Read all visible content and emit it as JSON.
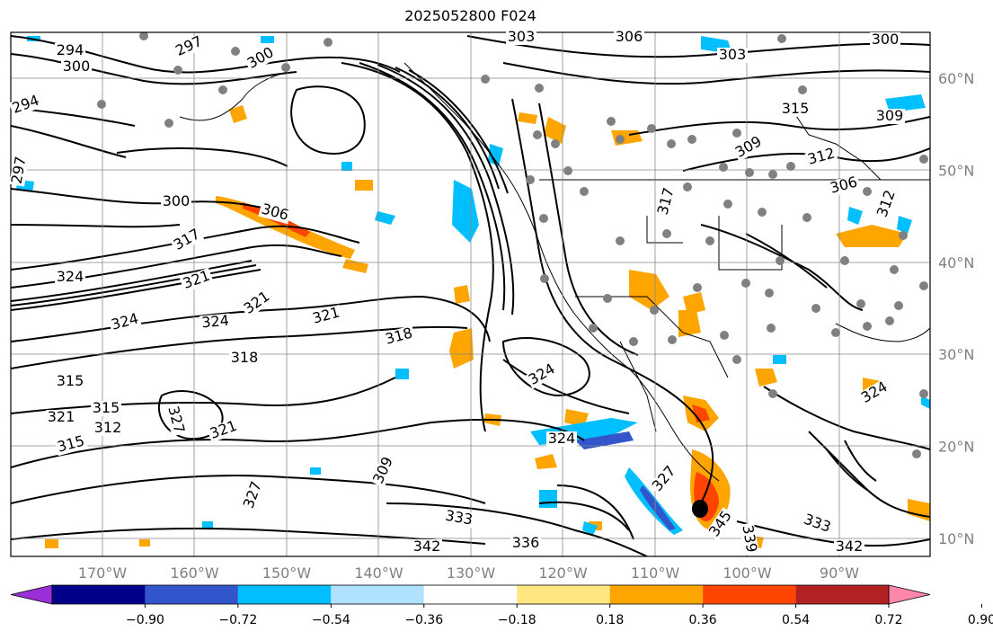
{
  "title": "2025052800 F024",
  "map": {
    "lon_labels": [
      {
        "text": "170°W",
        "lon": -170
      },
      {
        "text": "160°W",
        "lon": -160
      },
      {
        "text": "150°W",
        "lon": -150
      },
      {
        "text": "140°W",
        "lon": -140
      },
      {
        "text": "130°W",
        "lon": -130
      },
      {
        "text": "120°W",
        "lon": -120
      },
      {
        "text": "110°W",
        "lon": -110
      },
      {
        "text": "100°W",
        "lon": -100
      },
      {
        "text": "90°W",
        "lon": -90
      }
    ],
    "lat_labels": [
      {
        "text": "60°N",
        "lat": 60
      },
      {
        "text": "50°N",
        "lat": 50
      },
      {
        "text": "40°N",
        "lat": 40
      },
      {
        "text": "30°N",
        "lat": 30
      },
      {
        "text": "20°N",
        "lat": 20
      },
      {
        "text": "10°N",
        "lat": 10
      }
    ],
    "contour_labels": [
      "294",
      "300",
      "297",
      "294",
      "300",
      "297",
      "300",
      "306",
      "317",
      "324",
      "321",
      "324",
      "324",
      "321",
      "321",
      "318",
      "318",
      "315",
      "321",
      "315",
      "312",
      "315",
      "327",
      "321",
      "327",
      "309",
      "303",
      "306",
      "303",
      "300",
      "315",
      "309",
      "309",
      "312",
      "306",
      "317",
      "312",
      "324",
      "324",
      "324",
      "333",
      "336",
      "342",
      "345",
      "339",
      "333",
      "342",
      "327"
    ],
    "colors": {
      "purple": "#9b30d9",
      "navy": "#00008b",
      "blue": "#3355cc",
      "sky": "#00bfff",
      "lightblue": "#b0e2ff",
      "white": "#ffffff",
      "yellow": "#ffe680",
      "orange": "#ffa500",
      "redorange": "#ff4500",
      "firebrick": "#b22222",
      "pink": "#ff88aa"
    }
  },
  "colorbar": {
    "ticks": [
      "−0.90",
      "−0.72",
      "−0.54",
      "−0.36",
      "−0.18",
      "0.18",
      "0.36",
      "0.54",
      "0.72",
      "0.90"
    ],
    "colors": [
      "#9b30d9",
      "#00008b",
      "#3355cc",
      "#00bfff",
      "#b0e2ff",
      "#ffffff",
      "#ffe680",
      "#ffa500",
      "#ff4500",
      "#b22222",
      "#ff88aa"
    ]
  }
}
